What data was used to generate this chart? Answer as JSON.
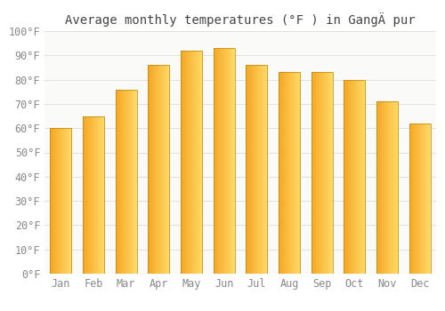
{
  "title": "Average monthly temperatures (°F ) in GangÄ pur",
  "months": [
    "Jan",
    "Feb",
    "Mar",
    "Apr",
    "May",
    "Jun",
    "Jul",
    "Aug",
    "Sep",
    "Oct",
    "Nov",
    "Dec"
  ],
  "values": [
    60,
    65,
    76,
    86,
    92,
    93,
    86,
    83,
    83,
    80,
    71,
    62
  ],
  "bar_color_left": "#F5A623",
  "bar_color_right": "#FFD966",
  "bar_border_color": "#B8860B",
  "background_color": "#FFFFFF",
  "plot_bg_color": "#FAFAF8",
  "grid_color": "#E0E0E0",
  "tick_label_color": "#888888",
  "title_color": "#444444",
  "ylim": [
    0,
    100
  ],
  "ytick_step": 10,
  "title_fontsize": 10,
  "tick_fontsize": 8.5,
  "bar_width": 0.65
}
